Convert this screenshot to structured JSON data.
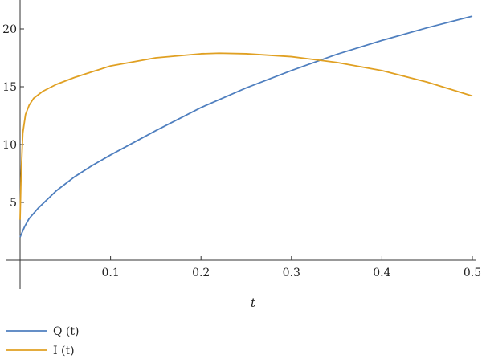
{
  "chart_data": {
    "type": "line",
    "xlabel": "t",
    "ylabel": "",
    "xlim": [
      -0.008,
      0.5
    ],
    "ylim": [
      -2.5,
      22.5
    ],
    "x_ticks": [
      0.1,
      0.2,
      0.3,
      0.4,
      0.5
    ],
    "x_tick_labels": [
      "0.1",
      "0.2",
      "0.3",
      "0.4",
      "0.5"
    ],
    "y_ticks": [
      5,
      10,
      15,
      20
    ],
    "y_tick_labels": [
      "5",
      "10",
      "15",
      "20"
    ],
    "grid": false,
    "legend_position": "bottom-left",
    "series": [
      {
        "name": "Q (t)",
        "color": "#4f7fbf",
        "x": [
          0.0,
          0.005,
          0.01,
          0.02,
          0.04,
          0.06,
          0.08,
          0.1,
          0.15,
          0.2,
          0.25,
          0.3,
          0.35,
          0.4,
          0.45,
          0.5
        ],
        "y": [
          2.0,
          2.9,
          3.6,
          4.5,
          6.0,
          7.2,
          8.2,
          9.1,
          11.2,
          13.2,
          14.9,
          16.4,
          17.8,
          19.0,
          20.1,
          21.1
        ]
      },
      {
        "name": "I (t)",
        "color": "#e0a022",
        "x": [
          0.0,
          0.001,
          0.003,
          0.006,
          0.01,
          0.015,
          0.025,
          0.04,
          0.06,
          0.08,
          0.1,
          0.15,
          0.2,
          0.22,
          0.25,
          0.3,
          0.35,
          0.4,
          0.45,
          0.5
        ],
        "y": [
          3.5,
          7.0,
          11.0,
          12.6,
          13.4,
          14.0,
          14.6,
          15.2,
          15.8,
          16.3,
          16.8,
          17.5,
          17.85,
          17.9,
          17.85,
          17.6,
          17.1,
          16.4,
          15.4,
          14.2
        ]
      }
    ]
  }
}
